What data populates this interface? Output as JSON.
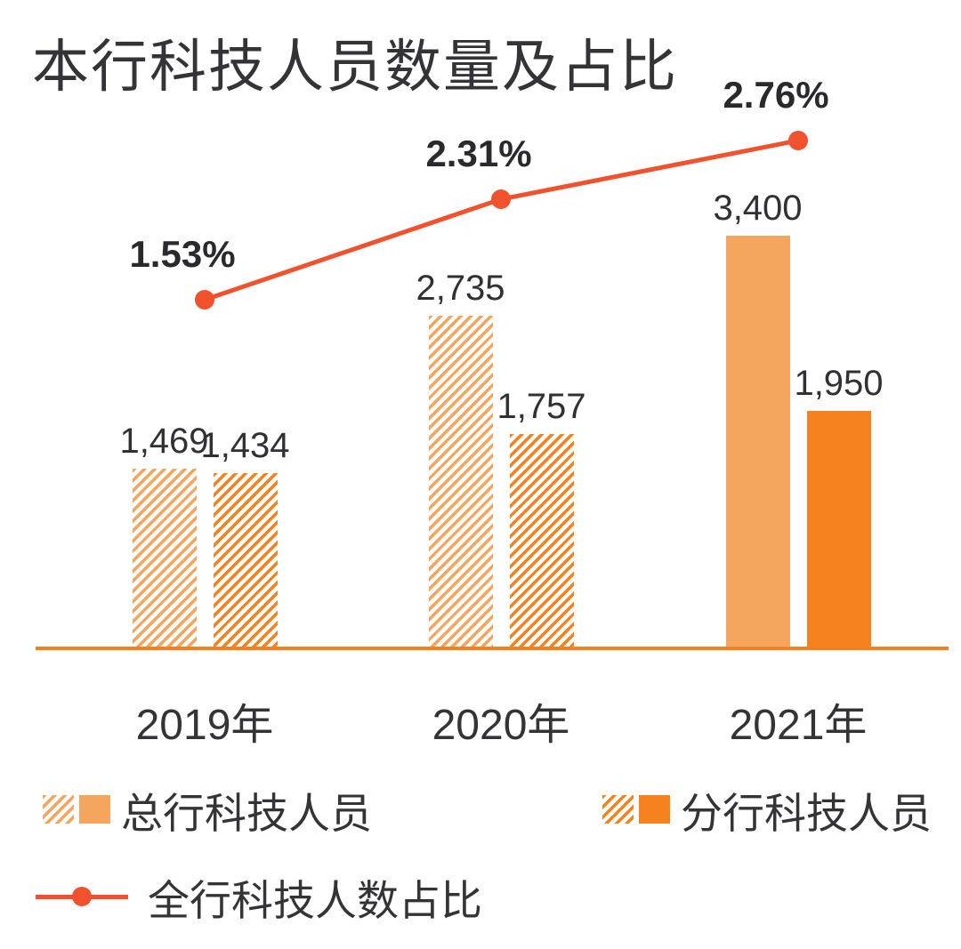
{
  "title": "本行科技人员数量及占比",
  "colors": {
    "head_office": "#F6A55E",
    "branch": "#F6821F",
    "line": "#F1512C",
    "axis": "#F6821F"
  },
  "legend": {
    "head_office_label": "总行科技人员",
    "branch_label": "分行科技人员",
    "line_label": "全行科技人数占比"
  },
  "chart_data": {
    "type": "bar",
    "title": "本行科技人员数量及占比",
    "categories": [
      "2019年",
      "2020年",
      "2021年"
    ],
    "series": [
      {
        "name": "总行科技人员",
        "values": [
          1469,
          2735,
          3400
        ],
        "labels": [
          "1,469",
          "2,735",
          "3,400"
        ],
        "color_key": "head_office"
      },
      {
        "name": "分行科技人员",
        "values": [
          1434,
          1757,
          1950
        ],
        "labels": [
          "1,434",
          "1,757",
          "1,950"
        ],
        "color_key": "branch"
      }
    ],
    "line_series": {
      "name": "全行科技人数占比",
      "values": [
        1.53,
        2.31,
        2.76
      ],
      "labels": [
        "1.53%",
        "2.31%",
        "2.76%"
      ]
    },
    "category_fill_styles": [
      "hatch",
      "hatch",
      "solid"
    ],
    "ylim": [
      0,
      3600
    ],
    "grid": false,
    "legend_position": "bottom"
  }
}
